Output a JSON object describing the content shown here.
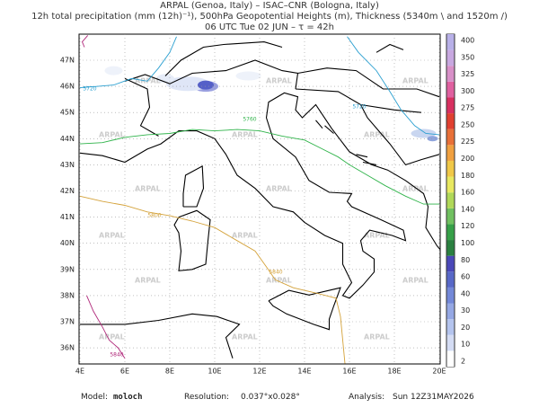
{
  "header": {
    "line1": "ARPAL (Genoa, Italy)  –  ISAC–CNR (Bologna, Italy)",
    "line2": "12h total precipitation (mm (12h)⁻¹), 500hPa Geopotential Heights (m), Thickness (5340m \\ and 1520m /)",
    "line3": "06 UTC Tue 02 JUN  –  τ = 42h"
  },
  "map": {
    "lat_labels": [
      "47N",
      "46N",
      "45N",
      "44N",
      "43N",
      "42N",
      "41N",
      "40N",
      "39N",
      "38N",
      "37N",
      "36N"
    ],
    "lon_labels": [
      "4E",
      "6E",
      "8E",
      "10E",
      "12E",
      "14E",
      "16E",
      "18E",
      "20E"
    ],
    "contour_labels": [
      "5720",
      "5760",
      "5720",
      "5800",
      "5840",
      "5840"
    ],
    "watermark": "ARPAL"
  },
  "colorbar": {
    "labels": [
      400,
      350,
      325,
      300,
      275,
      250,
      225,
      200,
      180,
      160,
      140,
      120,
      100,
      80,
      60,
      40,
      30,
      20,
      10,
      2
    ]
  },
  "footer": {
    "model_label": "Model:",
    "model": "moloch",
    "resolution_label": "Resolution:",
    "resolution": "0.037°x0.028°",
    "analysis_label": "Analysis:",
    "analysis": "Sun 12Z31MAY2026"
  }
}
